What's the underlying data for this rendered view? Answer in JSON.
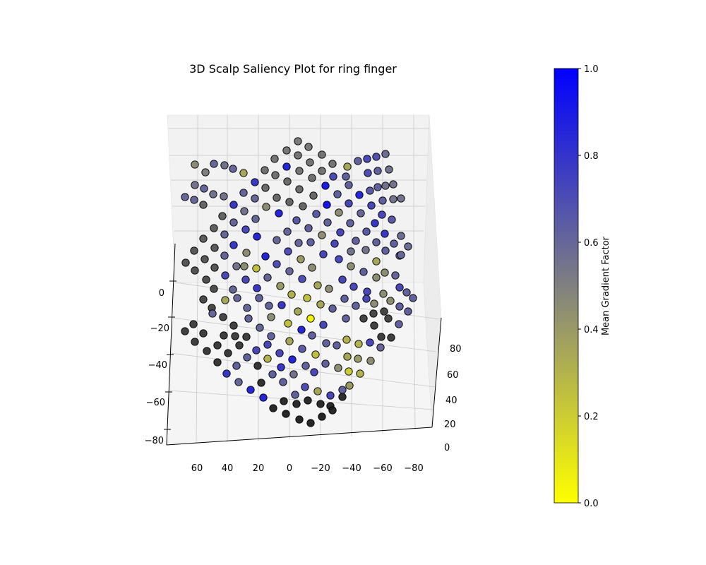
{
  "chart_data": {
    "type": "scatter",
    "title": "3D Scalp Saliency Plot for ring finger",
    "projection": "3d",
    "axes": {
      "x_ticks": [
        "60",
        "40",
        "20",
        "0",
        "−20",
        "−40",
        "−60",
        "−80"
      ],
      "y_ticks": [
        "0",
        "20",
        "40",
        "60",
        "80"
      ],
      "z_ticks": [
        "0",
        "−20",
        "−40",
        "−60",
        "−80"
      ],
      "grid": true
    },
    "colorbar": {
      "label": "Mean Gradient Factor",
      "range": [
        0.0,
        1.0
      ],
      "ticks": [
        "0.0",
        "0.2",
        "0.4",
        "0.6",
        "0.8",
        "1.0"
      ],
      "colormap": [
        "#ffff00",
        "#808080",
        "#0000ff"
      ]
    },
    "points_note_free": true,
    "points": [
      {
        "x": 0,
        "y": 0,
        "z": 0,
        "v": 0.0
      }
    ],
    "marker_edge_color": "#000000",
    "dark_color": "#111111"
  }
}
